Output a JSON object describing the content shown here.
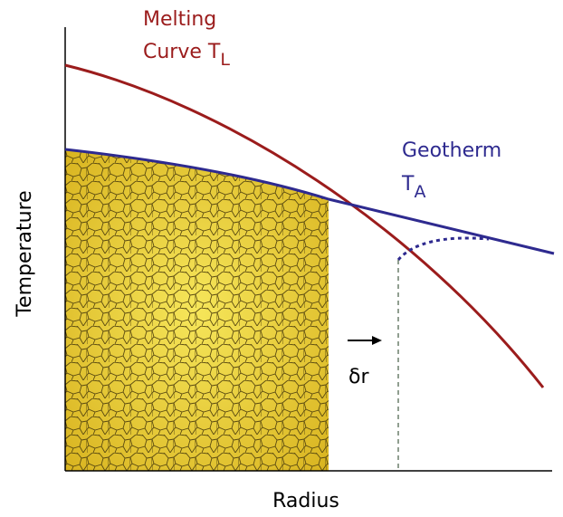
{
  "melting_curve": {
    "line1": "Melting",
    "line2": "Curve T",
    "subscript": "L"
  },
  "geotherm": {
    "line1": "Geotherm",
    "line2": "T",
    "subscript": "A"
  },
  "axes": {
    "y_label": "Temperature",
    "x_label": "Radius"
  },
  "increment": "δr"
}
